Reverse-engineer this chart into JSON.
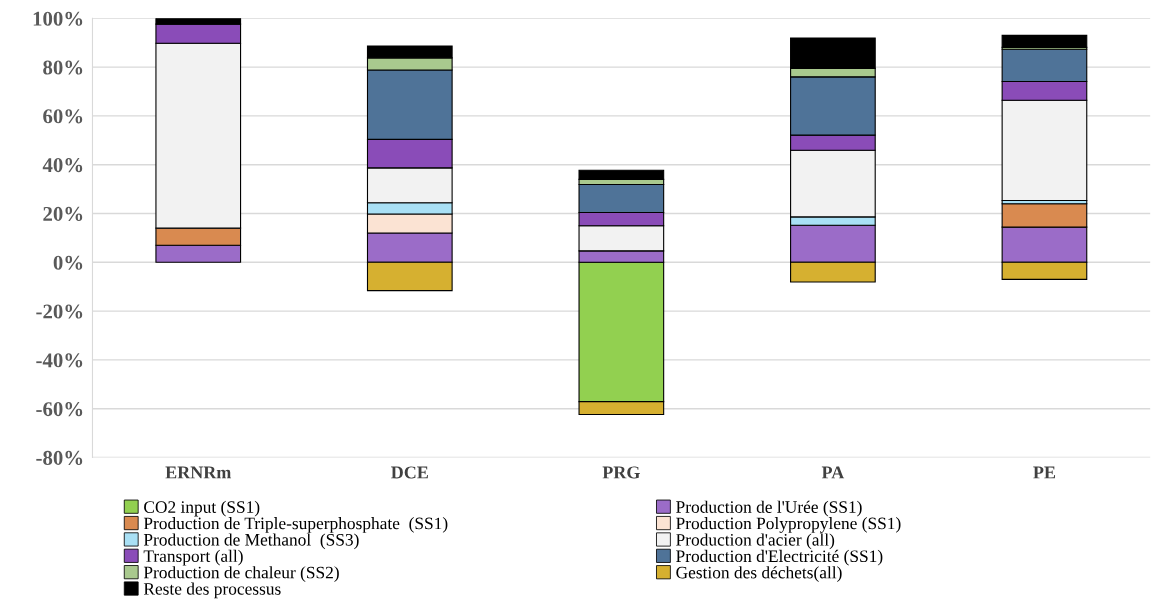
{
  "chart_data": {
    "type": "bar",
    "stacked": true,
    "categories": [
      "ERNRm",
      "DCE",
      "PRG",
      "PA",
      "PE"
    ],
    "series": [
      {
        "name": "CO2 input (SS1)",
        "color": "#92d050",
        "values": [
          null,
          null,
          -57.1,
          null,
          null
        ]
      },
      {
        "name": "Production de l'Urée (SS1)",
        "color": "#9b6cc8",
        "values": [
          7.0,
          12.0,
          4.7,
          15.2,
          14.4
        ]
      },
      {
        "name": "Production de Triple-superphosphate  (SS1)",
        "color": "#d98a50",
        "values": [
          7.0,
          null,
          null,
          null,
          9.6
        ]
      },
      {
        "name": "Production Polypropylene (SS1)",
        "color": "#fbe3d3",
        "values": [
          null,
          7.8,
          null,
          null,
          null
        ]
      },
      {
        "name": "Production de Methanol  (SS3)",
        "color": "#a9e0f5",
        "values": [
          null,
          4.6,
          null,
          3.4,
          1.3
        ]
      },
      {
        "name": "Production d'acier (all)",
        "color": "#f2f2f2",
        "values": [
          75.8,
          14.3,
          10.3,
          27.3,
          41.1
        ]
      },
      {
        "name": "Transport (all)",
        "color": "#8a4cb8",
        "values": [
          7.8,
          11.7,
          5.4,
          6.2,
          7.7
        ]
      },
      {
        "name": "Production d'Electricité (SS1)",
        "color": "#4f7398",
        "values": [
          null,
          28.4,
          11.5,
          23.9,
          13.2
        ]
      },
      {
        "name": "Production de chaleur (SS2)",
        "color": "#a9c98e",
        "values": [
          null,
          5.0,
          2.1,
          3.5,
          0.8
        ]
      },
      {
        "name": "Gestion des déchets(all)",
        "color": "#d6b030",
        "values": [
          null,
          -11.6,
          -5.3,
          -8.1,
          -7.0
        ]
      },
      {
        "name": "Reste des processus",
        "color": "#000000",
        "values": [
          2.4,
          4.8,
          3.7,
          12.4,
          4.9
        ]
      }
    ],
    "ylim": [
      -80,
      100
    ],
    "yticks": [
      {
        "value": -80,
        "label": "-80%"
      },
      {
        "value": -60,
        "label": "-60%"
      },
      {
        "value": -40,
        "label": "-40%"
      },
      {
        "value": -20,
        "label": "-20%"
      },
      {
        "value": 0,
        "label": "0%"
      },
      {
        "value": 20,
        "label": "20%"
      },
      {
        "value": 40,
        "label": "40%"
      },
      {
        "value": 60,
        "label": "60%"
      },
      {
        "value": 80,
        "label": "80%"
      },
      {
        "value": 100,
        "label": "100%"
      }
    ],
    "grid": "y",
    "legend": "bottom"
  }
}
